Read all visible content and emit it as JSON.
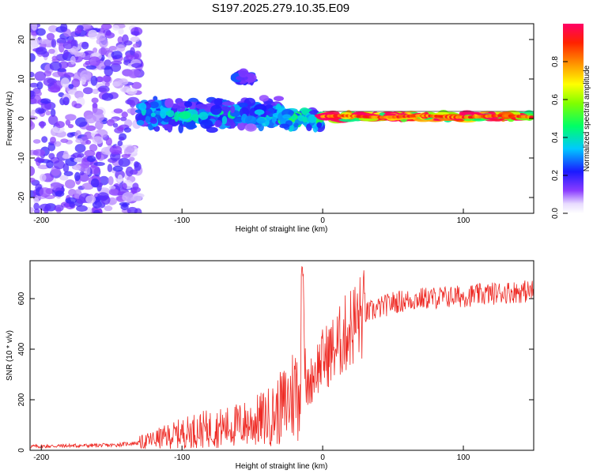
{
  "title": "S197.2025.279.10.35.E09",
  "chart_data": [
    {
      "type": "heatmap",
      "xlabel": "Height of straight line (km)",
      "ylabel": "Frequency (Hz)",
      "xlim": [
        -208,
        150
      ],
      "ylim": [
        -24,
        24
      ],
      "xticks": [
        -200,
        -100,
        0,
        100
      ],
      "yticks": [
        20,
        10,
        0,
        -10,
        -20
      ],
      "colorbar": {
        "label": "Normalized spectral amplitude",
        "range": [
          0,
          1
        ],
        "ticks": [
          0.0,
          0.2,
          0.4,
          0.6,
          0.8
        ],
        "colormap": "rainbow (white-purple-blue-cyan-green-yellow-red-magenta)"
      },
      "regions": [
        {
          "x_range": [
            -208,
            -130
          ],
          "freq_spread_hz": 24,
          "amplitude": 0.15,
          "description": "diffuse noise"
        },
        {
          "x_range": [
            -130,
            -30
          ],
          "freq_center_hz": 1,
          "freq_spread_hz": 5,
          "amplitude": 0.35
        },
        {
          "x_range": [
            -62,
            -50
          ],
          "freq_center_hz": 10.5,
          "amplitude": 0.2
        },
        {
          "x_range": [
            -30,
            0
          ],
          "freq_center_hz": 0,
          "freq_spread_hz": 3,
          "amplitude": 0.4
        },
        {
          "x_range": [
            0,
            150
          ],
          "freq_center_hz": 0.5,
          "freq_spread_hz": 1,
          "amplitude": 0.9
        }
      ]
    },
    {
      "type": "line",
      "xlabel": "Height of straight line (km)",
      "ylabel": "SNR (10 * v/v)",
      "xlim": [
        -208,
        150
      ],
      "ylim": [
        0,
        750
      ],
      "xticks": [
        -200,
        -100,
        0,
        100
      ],
      "yticks": [
        0,
        200,
        400,
        600
      ],
      "color": "#ee2a24",
      "x": [
        -208,
        -180,
        -150,
        -130,
        -110,
        -90,
        -70,
        -50,
        -35,
        -25,
        -18,
        -15,
        -14,
        -12,
        -5,
        0,
        10,
        20,
        30,
        50,
        70,
        100,
        130,
        150
      ],
      "y": [
        15,
        18,
        20,
        30,
        55,
        80,
        90,
        110,
        140,
        190,
        250,
        280,
        690,
        230,
        320,
        360,
        410,
        490,
        540,
        585,
        600,
        610,
        625,
        630
      ]
    }
  ]
}
